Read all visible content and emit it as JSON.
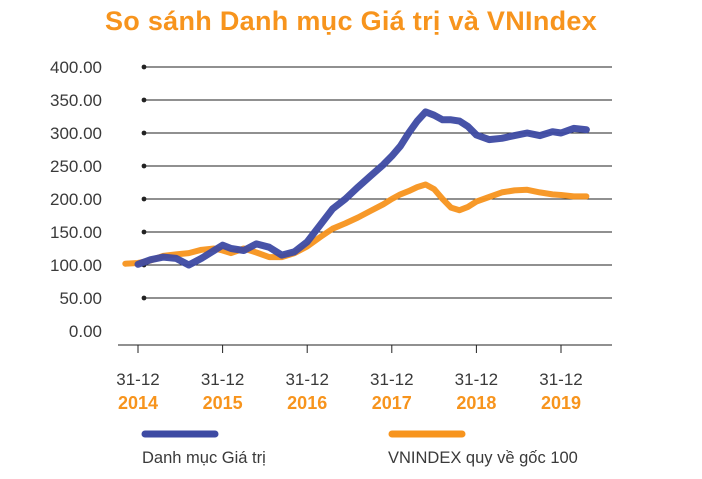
{
  "colors": {
    "portfolio": "#3d4aa3",
    "vnindex": "#f7941d",
    "title": "#f7941d",
    "axis": "#222222"
  },
  "chart_data": {
    "type": "line",
    "title": "So sánh Danh mục Giá trị và VNIndex",
    "xlabel": "",
    "ylabel": "",
    "ylim": [
      0,
      400
    ],
    "yticks": [
      "400.00",
      "350.00",
      "300.00",
      "250.00",
      "200.00",
      "150.00",
      "100.00",
      "50.00",
      "0.00"
    ],
    "xticks": [
      {
        "day": "31-12",
        "year": "2014"
      },
      {
        "day": "31-12",
        "year": "2015"
      },
      {
        "day": "31-12",
        "year": "2016"
      },
      {
        "day": "31-12",
        "year": "2017"
      },
      {
        "day": "31-12",
        "year": "2018"
      },
      {
        "day": "31-12",
        "year": "2019"
      }
    ],
    "grid": true,
    "legend_position": "bottom",
    "series": [
      {
        "name": "Danh mục Giá trị",
        "color": "#3d4aa3",
        "points": [
          [
            2014.0,
            101
          ],
          [
            2014.15,
            108
          ],
          [
            2014.3,
            112
          ],
          [
            2014.45,
            110
          ],
          [
            2014.6,
            100
          ],
          [
            2014.75,
            110
          ],
          [
            2014.9,
            122
          ],
          [
            2015.0,
            130
          ],
          [
            2015.1,
            125
          ],
          [
            2015.25,
            122
          ],
          [
            2015.4,
            132
          ],
          [
            2015.55,
            127
          ],
          [
            2015.7,
            115
          ],
          [
            2015.85,
            120
          ],
          [
            2016.0,
            135
          ],
          [
            2016.15,
            160
          ],
          [
            2016.3,
            185
          ],
          [
            2016.45,
            200
          ],
          [
            2016.6,
            218
          ],
          [
            2016.75,
            235
          ],
          [
            2016.9,
            252
          ],
          [
            2017.0,
            265
          ],
          [
            2017.1,
            280
          ],
          [
            2017.2,
            300
          ],
          [
            2017.3,
            318
          ],
          [
            2017.4,
            332
          ],
          [
            2017.5,
            327
          ],
          [
            2017.6,
            320
          ],
          [
            2017.7,
            320
          ],
          [
            2017.8,
            318
          ],
          [
            2017.9,
            310
          ],
          [
            2018.0,
            297
          ],
          [
            2018.15,
            290
          ],
          [
            2018.3,
            292
          ],
          [
            2018.45,
            296
          ],
          [
            2018.6,
            300
          ],
          [
            2018.75,
            296
          ],
          [
            2018.9,
            302
          ],
          [
            2019.0,
            300
          ],
          [
            2019.15,
            307
          ],
          [
            2019.3,
            305
          ]
        ]
      },
      {
        "name": "VNINDEX quy về gốc 100",
        "color": "#f7941d",
        "points": [
          [
            2013.85,
            102
          ],
          [
            2014.0,
            103
          ],
          [
            2014.15,
            107
          ],
          [
            2014.3,
            114
          ],
          [
            2014.45,
            116
          ],
          [
            2014.6,
            118
          ],
          [
            2014.75,
            123
          ],
          [
            2014.9,
            125
          ],
          [
            2015.0,
            122
          ],
          [
            2015.1,
            118
          ],
          [
            2015.25,
            125
          ],
          [
            2015.4,
            119
          ],
          [
            2015.55,
            112
          ],
          [
            2015.7,
            112
          ],
          [
            2015.85,
            118
          ],
          [
            2016.0,
            128
          ],
          [
            2016.15,
            142
          ],
          [
            2016.3,
            155
          ],
          [
            2016.45,
            163
          ],
          [
            2016.6,
            172
          ],
          [
            2016.75,
            182
          ],
          [
            2016.9,
            192
          ],
          [
            2017.0,
            200
          ],
          [
            2017.1,
            207
          ],
          [
            2017.2,
            212
          ],
          [
            2017.3,
            218
          ],
          [
            2017.4,
            222
          ],
          [
            2017.5,
            215
          ],
          [
            2017.6,
            200
          ],
          [
            2017.7,
            187
          ],
          [
            2017.8,
            183
          ],
          [
            2017.9,
            188
          ],
          [
            2018.0,
            196
          ],
          [
            2018.15,
            203
          ],
          [
            2018.3,
            210
          ],
          [
            2018.45,
            213
          ],
          [
            2018.6,
            214
          ],
          [
            2018.75,
            210
          ],
          [
            2018.9,
            207
          ],
          [
            2019.0,
            206
          ],
          [
            2019.15,
            204
          ],
          [
            2019.3,
            204
          ]
        ]
      }
    ]
  }
}
